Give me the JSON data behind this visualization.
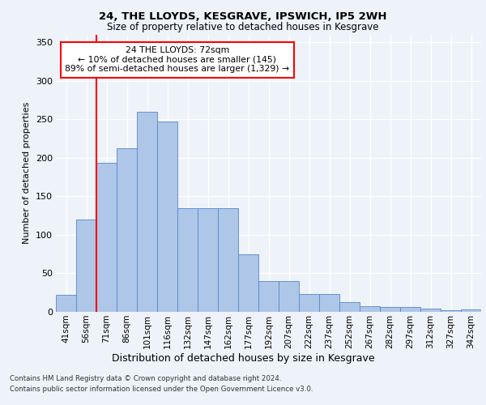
{
  "title1": "24, THE LLOYDS, KESGRAVE, IPSWICH, IP5 2WH",
  "title2": "Size of property relative to detached houses in Kesgrave",
  "xlabel": "Distribution of detached houses by size in Kesgrave",
  "ylabel": "Number of detached properties",
  "categories": [
    "41sqm",
    "56sqm",
    "71sqm",
    "86sqm",
    "101sqm",
    "116sqm",
    "132sqm",
    "147sqm",
    "162sqm",
    "177sqm",
    "192sqm",
    "207sqm",
    "222sqm",
    "237sqm",
    "252sqm",
    "267sqm",
    "282sqm",
    "297sqm",
    "312sqm",
    "327sqm",
    "342sqm"
  ],
  "values": [
    22,
    120,
    193,
    212,
    260,
    247,
    135,
    135,
    135,
    75,
    40,
    40,
    23,
    23,
    13,
    7,
    6,
    6,
    4,
    2,
    3
  ],
  "bar_color": "#aec6e8",
  "bar_edge_color": "#5588cc",
  "annotation_text_line1": "24 THE LLOYDS: 72sqm",
  "annotation_text_line2": "← 10% of detached houses are smaller (145)",
  "annotation_text_line3": "89% of semi-detached houses are larger (1,329) →",
  "annotation_box_color": "white",
  "annotation_box_edge_color": "red",
  "vline_color": "red",
  "vline_x": 1.5,
  "ylim": [
    0,
    360
  ],
  "yticks": [
    0,
    50,
    100,
    150,
    200,
    250,
    300,
    350
  ],
  "footer1": "Contains HM Land Registry data © Crown copyright and database right 2024.",
  "footer2": "Contains public sector information licensed under the Open Government Licence v3.0.",
  "background_color": "#eef2f9",
  "plot_background": "#eef2f9",
  "grid_color": "white"
}
